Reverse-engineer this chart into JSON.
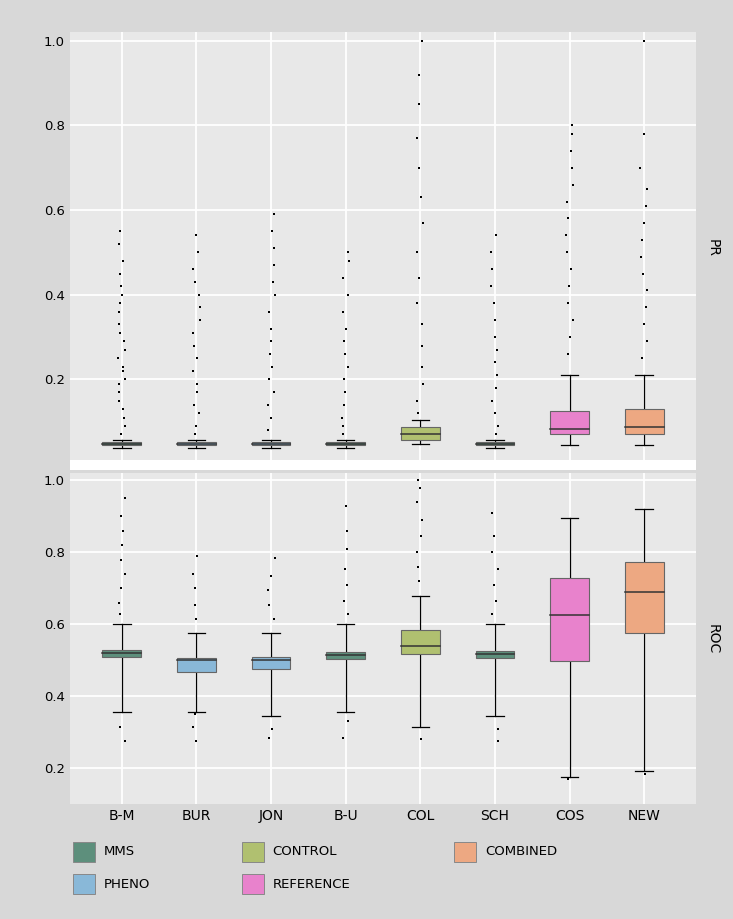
{
  "categories": [
    "B-M",
    "BUR",
    "JON",
    "B-U",
    "COL",
    "SCH",
    "COS",
    "NEW"
  ],
  "colors": {
    "B-M": "#5d8f7c",
    "BUR": "#89b8d8",
    "JON": "#89b8d8",
    "B-U": "#5d8f7c",
    "COL": "#b0c070",
    "SCH": "#5d8f7c",
    "COS": "#e882cc",
    "NEW": "#eda882"
  },
  "background_color": "#e8e8e8",
  "fig_bg": "#d8d8d8",
  "pr_data": {
    "B-M": {
      "q1": 0.044,
      "median": 0.048,
      "q3": 0.052,
      "whislo": 0.038,
      "whishi": 0.058,
      "fliers_up": [
        0.07,
        0.09,
        0.11,
        0.13,
        0.15,
        0.17,
        0.19,
        0.2,
        0.22,
        0.23,
        0.25,
        0.27,
        0.29,
        0.31,
        0.33,
        0.36,
        0.38,
        0.4,
        0.42,
        0.45,
        0.48,
        0.52,
        0.55
      ]
    },
    "BUR": {
      "q1": 0.044,
      "median": 0.048,
      "q3": 0.052,
      "whislo": 0.038,
      "whishi": 0.058,
      "fliers_up": [
        0.07,
        0.09,
        0.12,
        0.14,
        0.17,
        0.19,
        0.22,
        0.25,
        0.28,
        0.31,
        0.34,
        0.37,
        0.4,
        0.43,
        0.46,
        0.5,
        0.54
      ]
    },
    "JON": {
      "q1": 0.044,
      "median": 0.048,
      "q3": 0.052,
      "whislo": 0.038,
      "whishi": 0.058,
      "fliers_up": [
        0.08,
        0.11,
        0.14,
        0.17,
        0.2,
        0.23,
        0.26,
        0.29,
        0.32,
        0.36,
        0.4,
        0.43,
        0.47,
        0.51,
        0.55,
        0.59
      ]
    },
    "B-U": {
      "q1": 0.044,
      "median": 0.048,
      "q3": 0.052,
      "whislo": 0.038,
      "whishi": 0.058,
      "fliers_up": [
        0.07,
        0.09,
        0.11,
        0.14,
        0.17,
        0.2,
        0.23,
        0.26,
        0.29,
        0.32,
        0.36,
        0.4,
        0.44,
        0.48,
        0.5
      ]
    },
    "COL": {
      "q1": 0.058,
      "median": 0.07,
      "q3": 0.088,
      "whislo": 0.048,
      "whishi": 0.105,
      "fliers_up": [
        0.12,
        0.15,
        0.19,
        0.23,
        0.28,
        0.33,
        0.38,
        0.44,
        0.5,
        0.57,
        0.63,
        0.7,
        0.77,
        0.85,
        0.92,
        1.0
      ]
    },
    "SCH": {
      "q1": 0.044,
      "median": 0.048,
      "q3": 0.052,
      "whislo": 0.038,
      "whishi": 0.058,
      "fliers_up": [
        0.07,
        0.09,
        0.12,
        0.15,
        0.18,
        0.21,
        0.24,
        0.27,
        0.3,
        0.34,
        0.38,
        0.42,
        0.46,
        0.5,
        0.54
      ]
    },
    "COS": {
      "q1": 0.072,
      "median": 0.082,
      "q3": 0.125,
      "whislo": 0.044,
      "whishi": 0.21,
      "fliers_up": [
        0.26,
        0.3,
        0.34,
        0.38,
        0.42,
        0.46,
        0.5,
        0.54,
        0.58,
        0.62,
        0.66,
        0.7,
        0.74,
        0.78,
        0.8
      ]
    },
    "NEW": {
      "q1": 0.072,
      "median": 0.088,
      "q3": 0.13,
      "whislo": 0.044,
      "whishi": 0.21,
      "fliers_up": [
        0.25,
        0.29,
        0.33,
        0.37,
        0.41,
        0.45,
        0.49,
        0.53,
        0.57,
        0.61,
        0.65,
        0.7,
        0.78,
        1.0
      ]
    }
  },
  "roc_data": {
    "B-M": {
      "q1": 0.508,
      "median": 0.52,
      "q3": 0.528,
      "whislo": 0.355,
      "whishi": 0.6,
      "fliers_lo": [
        0.275,
        0.315
      ],
      "fliers_up": [
        0.63,
        0.66,
        0.7,
        0.74,
        0.78,
        0.82,
        0.86,
        0.9,
        0.95
      ]
    },
    "BUR": {
      "q1": 0.468,
      "median": 0.5,
      "q3": 0.507,
      "whislo": 0.355,
      "whishi": 0.575,
      "fliers_lo": [
        0.275,
        0.315,
        0.35
      ],
      "fliers_up": [
        0.615,
        0.655,
        0.7,
        0.74,
        0.79
      ]
    },
    "JON": {
      "q1": 0.476,
      "median": 0.5,
      "q3": 0.508,
      "whislo": 0.345,
      "whishi": 0.575,
      "fliers_lo": [
        0.285,
        0.31
      ],
      "fliers_up": [
        0.615,
        0.655,
        0.695,
        0.735,
        0.785
      ]
    },
    "B-U": {
      "q1": 0.503,
      "median": 0.515,
      "q3": 0.523,
      "whislo": 0.355,
      "whishi": 0.6,
      "fliers_lo": [
        0.285,
        0.33
      ],
      "fliers_up": [
        0.63,
        0.665,
        0.71,
        0.755,
        0.81,
        0.86,
        0.93
      ]
    },
    "COL": {
      "q1": 0.518,
      "median": 0.54,
      "q3": 0.583,
      "whislo": 0.315,
      "whishi": 0.68,
      "fliers_lo": [
        0.28
      ],
      "fliers_up": [
        0.72,
        0.76,
        0.8,
        0.845,
        0.89,
        0.94,
        0.98,
        1.0
      ]
    },
    "SCH": {
      "q1": 0.507,
      "median": 0.518,
      "q3": 0.525,
      "whislo": 0.345,
      "whishi": 0.6,
      "fliers_lo": [
        0.275,
        0.31
      ],
      "fliers_up": [
        0.63,
        0.665,
        0.71,
        0.755,
        0.8,
        0.845,
        0.91
      ]
    },
    "COS": {
      "q1": 0.498,
      "median": 0.625,
      "q3": 0.73,
      "whislo": 0.175,
      "whishi": 0.895,
      "fliers_lo": [
        0.17
      ],
      "fliers_up": []
    },
    "NEW": {
      "q1": 0.577,
      "median": 0.69,
      "q3": 0.774,
      "whislo": 0.192,
      "whishi": 0.92,
      "fliers_lo": [
        0.185
      ],
      "fliers_up": []
    }
  },
  "legend": {
    "MMS": "#5d8f7c",
    "PHENO": "#89b8d8",
    "CONTROL": "#b0c070",
    "REFERENCE": "#e882cc",
    "COMBINED": "#eda882"
  },
  "ylim_pr": [
    0.0,
    1.02
  ],
  "ylim_roc": [
    0.1,
    1.02
  ],
  "yticks_pr": [
    0.2,
    0.4,
    0.6,
    0.8,
    1.0
  ],
  "yticks_roc": [
    0.2,
    0.4,
    0.6,
    0.8,
    1.0
  ]
}
